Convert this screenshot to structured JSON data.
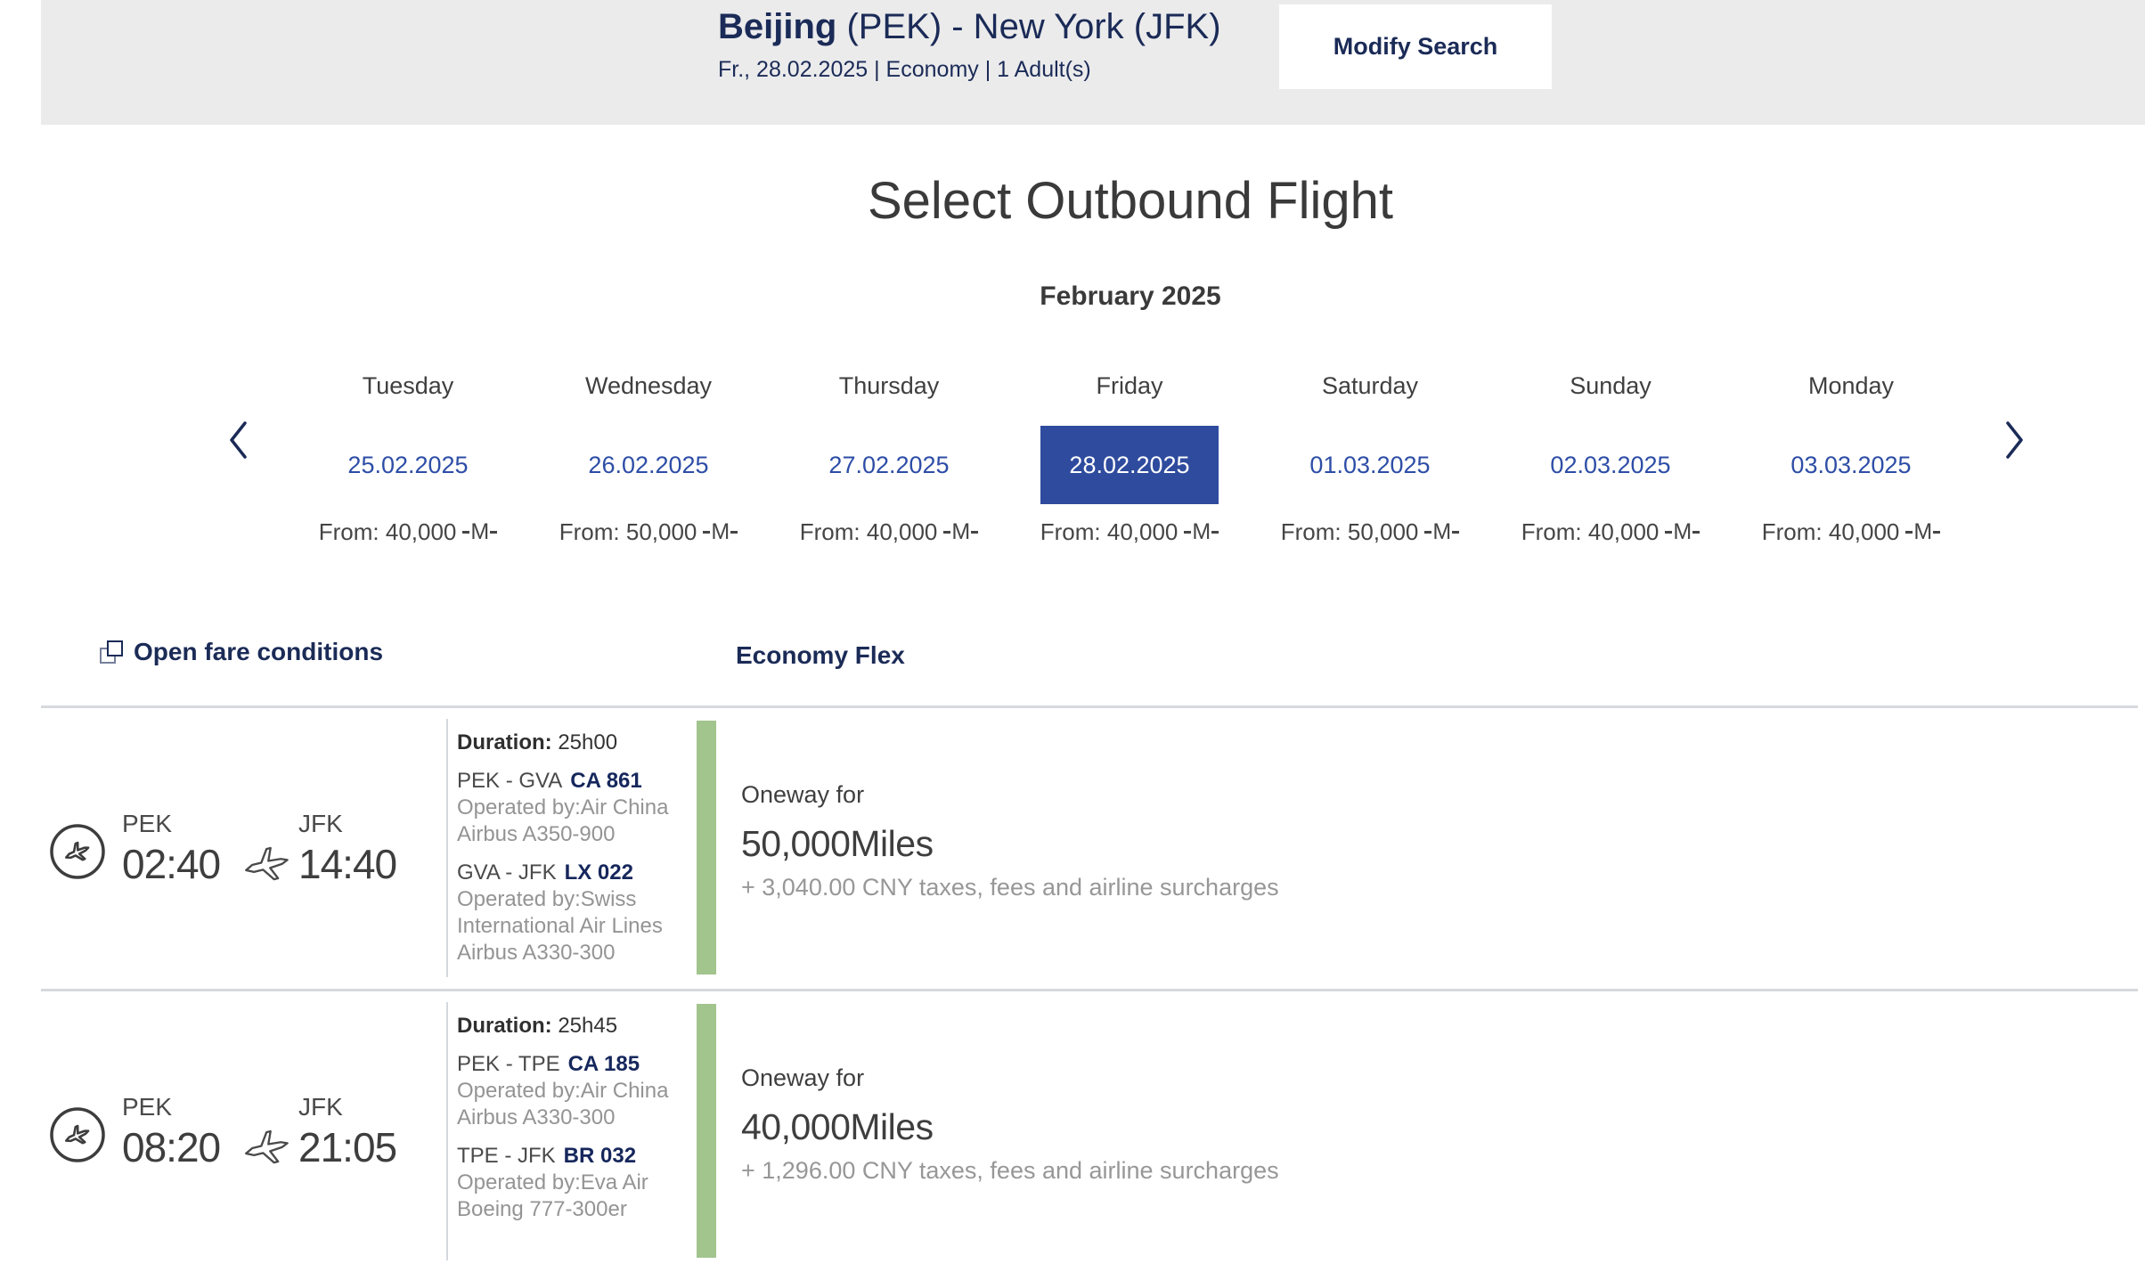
{
  "colors": {
    "navy": "#1b2b57",
    "link_blue": "#2d4da6",
    "selected_date_bg": "#2e4b9e",
    "availability_green": "#a2c48d",
    "banner_gray": "#ebebec"
  },
  "header": {
    "route_city": "Beijing",
    "route_rest": " (PEK) - New York (JFK)",
    "summary": "Fr., 28.02.2025   |   Economy   |   1 Adult(s)",
    "modify_button": "Modify Search"
  },
  "main": {
    "title": "Select Outbound Flight",
    "month": "February 2025"
  },
  "carousel": {
    "miles_logo": "M",
    "days": [
      {
        "day": "Tuesday",
        "date": "25.02.2025",
        "from_label": "From: 40,000",
        "selected": false
      },
      {
        "day": "Wednesday",
        "date": "26.02.2025",
        "from_label": "From: 50,000",
        "selected": false
      },
      {
        "day": "Thursday",
        "date": "27.02.2025",
        "from_label": "From: 40,000",
        "selected": false
      },
      {
        "day": "Friday",
        "date": "28.02.2025",
        "from_label": "From: 40,000",
        "selected": true
      },
      {
        "day": "Saturday",
        "date": "01.03.2025",
        "from_label": "From: 50,000",
        "selected": false
      },
      {
        "day": "Sunday",
        "date": "02.03.2025",
        "from_label": "From: 40,000",
        "selected": false
      },
      {
        "day": "Monday",
        "date": "03.03.2025",
        "from_label": "From: 40,000",
        "selected": false
      }
    ]
  },
  "fare_bar": {
    "open_fare_conditions": "Open fare conditions",
    "cabin_class": "Economy Flex"
  },
  "flights": [
    {
      "dep_airport": "PEK",
      "dep_time": "02:40",
      "arr_airport": "JFK",
      "arr_time": "14:40",
      "duration_label": "Duration:",
      "duration": "25h00",
      "segments": [
        {
          "route": "PEK - GVA",
          "flight_number": "CA 861",
          "operated_by": "Operated by:Air China",
          "aircraft": "Airbus A350-900"
        },
        {
          "route": "GVA - JFK",
          "flight_number": "LX 022",
          "operated_by": "Operated by:Swiss International Air Lines",
          "aircraft": "Airbus A330-300"
        }
      ],
      "fare": {
        "oneway_label": "Oneway for",
        "miles": "50,000Miles",
        "taxes": "+ 3,040.00 CNY taxes, fees and airline surcharges"
      }
    },
    {
      "dep_airport": "PEK",
      "dep_time": "08:20",
      "arr_airport": "JFK",
      "arr_time": "21:05",
      "duration_label": "Duration:",
      "duration": "25h45",
      "segments": [
        {
          "route": "PEK - TPE",
          "flight_number": "CA 185",
          "operated_by": "Operated by:Air China",
          "aircraft": "Airbus A330-300"
        },
        {
          "route": "TPE - JFK",
          "flight_number": "BR 032",
          "operated_by": "Operated by:Eva Air",
          "aircraft": "Boeing 777-300er"
        }
      ],
      "fare": {
        "oneway_label": "Oneway for",
        "miles": "40,000Miles",
        "taxes": "+ 1,296.00 CNY taxes, fees and airline surcharges"
      }
    }
  ]
}
